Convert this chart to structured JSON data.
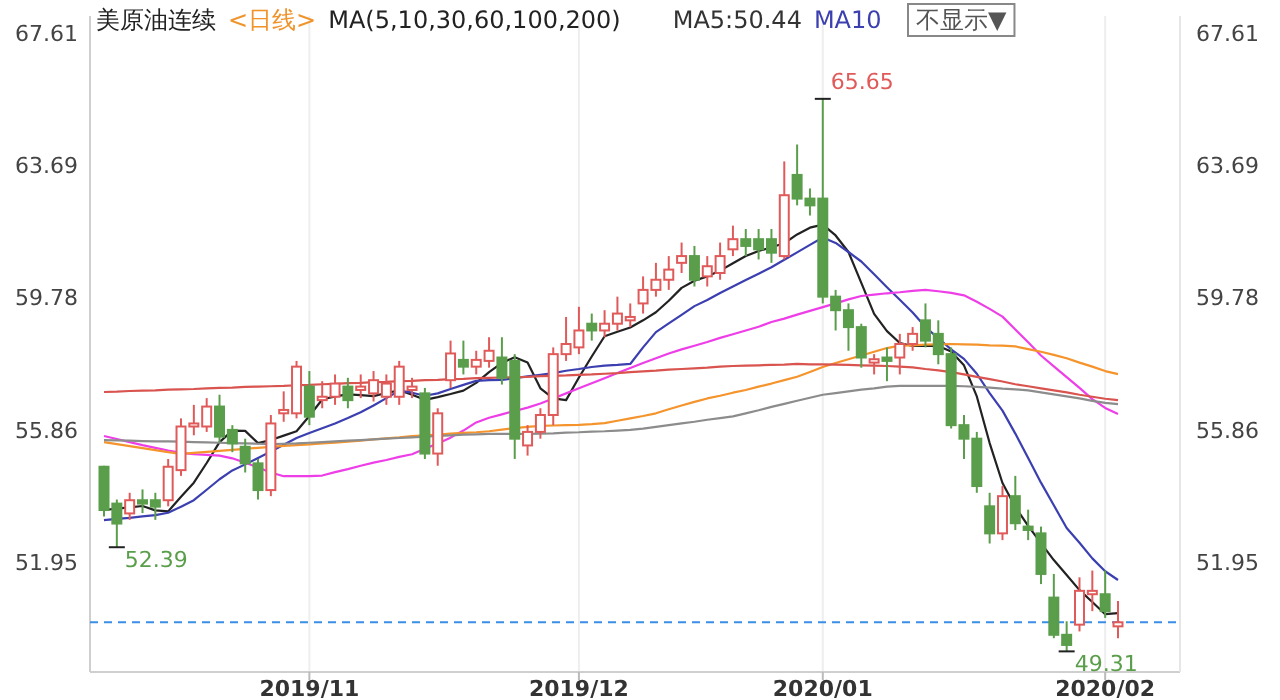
{
  "chart_data": {
    "type": "candlestick",
    "title": "美原油连续",
    "subtitle": "<日线>",
    "annotations": [
      "MA(5,10,30,60,100,200)",
      "MA5:50.44",
      "MA10",
      "不显示▼",
      "65.65",
      "52.39",
      "49.31"
    ],
    "categories": [
      null,
      null,
      null,
      null,
      null,
      null,
      null,
      null,
      null,
      null,
      null,
      null,
      null,
      null,
      null,
      null,
      "2019/11",
      null,
      null,
      null,
      null,
      null,
      null,
      null,
      null,
      null,
      null,
      null,
      null,
      null,
      null,
      null,
      null,
      null,
      null,
      null,
      null,
      "2019/12",
      null,
      null,
      null,
      null,
      null,
      null,
      null,
      null,
      null,
      null,
      null,
      null,
      null,
      null,
      null,
      null,
      null,
      null,
      "2020/01",
      null,
      null,
      null,
      null,
      null,
      null,
      null,
      null,
      null,
      null,
      null,
      null,
      null,
      null,
      null,
      null,
      null,
      null,
      null,
      null,
      null,
      "2020/02",
      null
    ],
    "ohlc": [
      [
        54.77,
        54.8,
        53.3,
        53.49
      ],
      [
        53.68,
        53.8,
        52.39,
        53.09
      ],
      [
        53.39,
        54.0,
        53.2,
        53.78
      ],
      [
        53.78,
        54.1,
        53.4,
        53.68
      ],
      [
        53.78,
        54.0,
        53.2,
        53.59
      ],
      [
        53.78,
        55.0,
        53.6,
        54.77
      ],
      [
        54.67,
        56.2,
        54.5,
        55.96
      ],
      [
        55.96,
        56.6,
        55.7,
        56.05
      ],
      [
        55.96,
        56.8,
        55.8,
        56.55
      ],
      [
        56.55,
        56.9,
        55.5,
        55.66
      ],
      [
        55.86,
        56.0,
        55.2,
        55.46
      ],
      [
        55.36,
        55.6,
        54.6,
        54.87
      ],
      [
        54.87,
        55.0,
        53.8,
        54.08
      ],
      [
        54.08,
        56.3,
        53.9,
        56.05
      ],
      [
        56.35,
        57.0,
        56.1,
        56.45
      ],
      [
        56.35,
        57.9,
        56.2,
        57.73
      ],
      [
        57.14,
        57.6,
        56.0,
        56.25
      ],
      [
        56.74,
        57.3,
        56.5,
        56.84
      ],
      [
        56.84,
        57.5,
        56.6,
        57.23
      ],
      [
        57.14,
        57.4,
        56.5,
        56.74
      ],
      [
        57.04,
        57.5,
        56.8,
        57.14
      ],
      [
        56.94,
        57.6,
        56.7,
        57.33
      ],
      [
        56.84,
        57.5,
        56.6,
        57.23
      ],
      [
        56.84,
        57.9,
        56.6,
        57.73
      ],
      [
        57.04,
        57.4,
        56.8,
        57.14
      ],
      [
        56.94,
        57.1,
        55.0,
        55.16
      ],
      [
        55.16,
        56.5,
        54.8,
        56.35
      ],
      [
        57.33,
        58.5,
        57.1,
        58.12
      ],
      [
        57.93,
        58.5,
        57.5,
        57.73
      ],
      [
        57.73,
        58.2,
        57.5,
        57.93
      ],
      [
        57.9,
        58.6,
        57.7,
        58.2
      ],
      [
        58.0,
        58.6,
        57.2,
        57.4
      ],
      [
        57.9,
        58.1,
        55.0,
        55.6
      ],
      [
        55.4,
        56.0,
        55.1,
        55.8
      ],
      [
        55.8,
        56.5,
        55.6,
        56.3
      ],
      [
        56.3,
        58.3,
        56.0,
        58.1
      ],
      [
        58.1,
        59.2,
        57.9,
        58.4
      ],
      [
        58.3,
        59.5,
        58.1,
        58.8
      ],
      [
        59.0,
        59.3,
        58.5,
        58.8
      ],
      [
        58.8,
        59.4,
        58.6,
        59.0
      ],
      [
        59.0,
        59.8,
        58.8,
        59.3
      ],
      [
        59.1,
        59.6,
        58.9,
        59.2
      ],
      [
        59.6,
        60.4,
        59.3,
        60.0
      ],
      [
        60.0,
        60.8,
        59.8,
        60.3
      ],
      [
        60.3,
        61.0,
        60.0,
        60.6
      ],
      [
        60.8,
        61.4,
        60.5,
        61.0
      ],
      [
        61.0,
        61.3,
        60.1,
        60.3
      ],
      [
        60.4,
        61.0,
        60.1,
        60.7
      ],
      [
        60.5,
        61.4,
        60.3,
        61.0
      ],
      [
        61.2,
        61.9,
        61.0,
        61.5
      ],
      [
        61.5,
        61.8,
        61.0,
        61.3
      ],
      [
        61.5,
        61.8,
        60.9,
        61.2
      ],
      [
        61.5,
        61.8,
        60.8,
        61.1
      ],
      [
        61.0,
        63.8,
        60.9,
        62.8
      ],
      [
        63.4,
        64.3,
        62.5,
        62.7
      ],
      [
        62.7,
        63.0,
        62.2,
        62.5
      ],
      [
        62.7,
        65.65,
        59.6,
        59.8
      ],
      [
        59.8,
        60.0,
        58.8,
        59.4
      ],
      [
        59.4,
        59.6,
        58.2,
        58.9
      ],
      [
        58.9,
        59.0,
        57.7,
        58.0
      ],
      [
        57.85,
        58.1,
        57.5,
        57.95
      ],
      [
        58.0,
        58.3,
        57.3,
        57.9
      ],
      [
        58.0,
        58.7,
        57.5,
        58.4
      ],
      [
        58.4,
        58.9,
        58.2,
        58.7
      ],
      [
        59.1,
        59.6,
        58.3,
        58.5
      ],
      [
        58.7,
        59.1,
        57.8,
        58.1
      ],
      [
        58.1,
        58.3,
        55.9,
        56.0
      ],
      [
        56.0,
        56.3,
        55.0,
        55.6
      ],
      [
        55.6,
        55.8,
        54.0,
        54.2
      ],
      [
        53.6,
        54.0,
        52.5,
        52.8
      ],
      [
        52.8,
        54.2,
        52.6,
        53.9
      ],
      [
        53.9,
        54.5,
        52.9,
        53.1
      ],
      [
        53.0,
        53.5,
        52.6,
        52.9
      ],
      [
        52.8,
        53.0,
        51.3,
        51.6
      ],
      [
        50.9,
        51.6,
        49.7,
        49.8
      ],
      [
        49.8,
        50.2,
        49.31,
        49.5
      ],
      [
        50.1,
        51.5,
        49.9,
        51.1
      ],
      [
        51.0,
        51.7,
        50.5,
        51.1
      ],
      [
        51.0,
        51.7,
        50.3,
        50.5
      ],
      [
        50.05,
        50.8,
        49.7,
        50.17
      ]
    ],
    "colors": [
      "#5a9e4b",
      "#5a9e4b",
      "#e05a5a",
      "#5a9e4b",
      "#5a9e4b",
      "#e05a5a",
      "#e05a5a",
      "#e05a5a",
      "#e05a5a",
      "#5a9e4b",
      "#5a9e4b",
      "#5a9e4b",
      "#5a9e4b",
      "#e05a5a",
      "#e05a5a",
      "#e05a5a",
      "#5a9e4b",
      "#e05a5a",
      "#e05a5a",
      "#5a9e4b",
      "#e05a5a",
      "#e05a5a",
      "#e05a5a",
      "#e05a5a",
      "#e05a5a",
      "#5a9e4b",
      "#e05a5a",
      "#e05a5a",
      "#5a9e4b",
      "#e05a5a",
      "#e05a5a",
      "#5a9e4b",
      "#5a9e4b",
      "#e05a5a",
      "#e05a5a",
      "#e05a5a",
      "#e05a5a",
      "#e05a5a",
      "#5a9e4b",
      "#e05a5a",
      "#e05a5a",
      "#e05a5a",
      "#e05a5a",
      "#e05a5a",
      "#e05a5a",
      "#e05a5a",
      "#5a9e4b",
      "#e05a5a",
      "#e05a5a",
      "#e05a5a",
      "#5a9e4b",
      "#5a9e4b",
      "#5a9e4b",
      "#e05a5a",
      "#5a9e4b",
      "#5a9e4b",
      "#5a9e4b",
      "#5a9e4b",
      "#5a9e4b",
      "#5a9e4b",
      "#e05a5a",
      "#5a9e4b",
      "#e05a5a",
      "#e05a5a",
      "#5a9e4b",
      "#5a9e4b",
      "#5a9e4b",
      "#5a9e4b",
      "#5a9e4b",
      "#5a9e4b",
      "#e05a5a",
      "#5a9e4b",
      "#5a9e4b",
      "#5a9e4b",
      "#5a9e4b",
      "#5a9e4b",
      "#e05a5a",
      "#e05a5a",
      "#5a9e4b",
      "#e05a5a"
    ],
    "series": [
      {
        "type": "line",
        "color": "#222222",
        "values": [
          53.49,
          53.53,
          53.57,
          53.61,
          53.48,
          53.45,
          53.88,
          54.3,
          54.88,
          55.5,
          55.84,
          55.83,
          55.47,
          55.56,
          55.69,
          55.82,
          56.27,
          56.76,
          56.85,
          56.91,
          56.89,
          56.86,
          56.95,
          57.03,
          56.9,
          56.75,
          56.83,
          56.92,
          57.02,
          57.25,
          57.57,
          57.84,
          58.01,
          57.85,
          57.09,
          56.79,
          56.74,
          57.41,
          58.03,
          58.63,
          58.76,
          58.89,
          59.1,
          59.34,
          59.68,
          60.06,
          60.27,
          60.4,
          60.57,
          60.79,
          61.0,
          61.15,
          61.26,
          61.38,
          61.64,
          61.84,
          61.93,
          61.61,
          61.12,
          60.21,
          59.29,
          58.78,
          58.43,
          58.34,
          58.34,
          58.34,
          58.18,
          57.77,
          56.85,
          55.47,
          54.29,
          53.58,
          53.02,
          52.51,
          52.01,
          51.57,
          51.12,
          50.77,
          50.41,
          50.44
        ]
      },
      {
        "type": "line",
        "color": "#3b3fb0",
        "values": [
          53.19,
          53.23,
          53.26,
          53.3,
          53.34,
          53.41,
          53.59,
          53.78,
          54.09,
          54.4,
          54.66,
          54.84,
          55.03,
          55.22,
          55.42,
          55.62,
          55.77,
          55.91,
          56.05,
          56.21,
          56.38,
          56.58,
          56.8,
          57.02,
          56.96,
          56.87,
          56.94,
          57.07,
          57.19,
          57.31,
          57.33,
          57.34,
          57.39,
          57.44,
          57.49,
          57.54,
          57.61,
          57.66,
          57.72,
          57.76,
          57.78,
          57.81,
          58.3,
          58.75,
          59.01,
          59.26,
          59.52,
          59.7,
          59.91,
          60.1,
          60.29,
          60.48,
          60.67,
          60.89,
          61.11,
          61.33,
          61.55,
          61.39,
          61.12,
          60.84,
          60.46,
          60.08,
          59.71,
          59.33,
          58.9,
          58.57,
          58.24,
          57.96,
          57.52,
          56.95,
          56.43,
          55.75,
          55.03,
          54.3,
          53.63,
          52.96,
          52.52,
          52.06,
          51.68,
          51.42
        ]
      },
      {
        "type": "line",
        "color": "#ee3ee8",
        "values": [
          55.68,
          55.59,
          55.5,
          55.41,
          55.33,
          55.25,
          55.18,
          55.14,
          55.12,
          55.1,
          55.02,
          54.89,
          54.75,
          54.6,
          54.49,
          54.49,
          54.49,
          54.51,
          54.61,
          54.7,
          54.8,
          54.89,
          54.97,
          55.06,
          55.14,
          55.3,
          55.46,
          55.63,
          55.84,
          56.08,
          56.22,
          56.32,
          56.42,
          56.52,
          56.64,
          56.79,
          56.94,
          57.09,
          57.24,
          57.39,
          57.54,
          57.69,
          57.84,
          57.98,
          58.12,
          58.24,
          58.35,
          58.46,
          58.58,
          58.69,
          58.8,
          58.91,
          59.05,
          59.15,
          59.27,
          59.38,
          59.49,
          59.6,
          59.72,
          59.82,
          59.86,
          59.9,
          59.93,
          59.97,
          60.0,
          59.96,
          59.91,
          59.84,
          59.65,
          59.44,
          59.21,
          58.83,
          58.45,
          58.06,
          57.74,
          57.42,
          57.1,
          56.77,
          56.51,
          56.33
        ]
      },
      {
        "type": "line",
        "color": "#f5942c",
        "values": [
          55.5,
          55.44,
          55.38,
          55.32,
          55.26,
          55.2,
          55.15,
          55.18,
          55.21,
          55.24,
          55.27,
          55.3,
          55.33,
          55.36,
          55.39,
          55.41,
          55.43,
          55.46,
          55.48,
          55.51,
          55.54,
          55.58,
          55.61,
          55.64,
          55.68,
          55.7,
          55.72,
          55.75,
          55.77,
          55.79,
          55.82,
          55.87,
          55.91,
          55.95,
          55.98,
          55.99,
          56.0,
          56.01,
          56.03,
          56.06,
          56.13,
          56.2,
          56.27,
          56.35,
          56.47,
          56.58,
          56.69,
          56.79,
          56.87,
          56.96,
          57.04,
          57.14,
          57.23,
          57.33,
          57.43,
          57.57,
          57.72,
          57.84,
          57.95,
          58.06,
          58.17,
          58.28,
          58.35,
          58.36,
          58.38,
          58.39,
          58.4,
          58.39,
          58.38,
          58.36,
          58.35,
          58.33,
          58.25,
          58.17,
          58.08,
          57.98,
          57.85,
          57.73,
          57.6,
          57.51
        ]
      },
      {
        "type": "line",
        "color": "#8c8c8c",
        "values": [
          55.56,
          55.55,
          55.54,
          55.53,
          55.52,
          55.52,
          55.51,
          55.5,
          55.49,
          55.48,
          55.47,
          55.46,
          55.45,
          55.44,
          55.45,
          55.46,
          55.48,
          55.5,
          55.52,
          55.54,
          55.56,
          55.58,
          55.6,
          55.62,
          55.64,
          55.66,
          55.68,
          55.7,
          55.72,
          55.73,
          55.74,
          55.74,
          55.74,
          55.74,
          55.75,
          55.76,
          55.78,
          55.79,
          55.81,
          55.82,
          55.84,
          55.86,
          55.9,
          55.95,
          56.0,
          56.05,
          56.1,
          56.16,
          56.21,
          56.26,
          56.35,
          56.44,
          56.54,
          56.63,
          56.72,
          56.81,
          56.9,
          56.95,
          57.0,
          57.05,
          57.09,
          57.14,
          57.16,
          57.16,
          57.16,
          57.16,
          57.16,
          57.15,
          57.13,
          57.11,
          57.08,
          57.06,
          57.03,
          56.97,
          56.91,
          56.85,
          56.79,
          56.72,
          56.66,
          56.62
        ]
      },
      {
        "type": "line",
        "color": "#d9534f",
        "values": [
          56.98,
          56.99,
          57.01,
          57.02,
          57.03,
          57.05,
          57.06,
          57.07,
          57.09,
          57.1,
          57.11,
          57.13,
          57.14,
          57.15,
          57.16,
          57.18,
          57.19,
          57.21,
          57.22,
          57.24,
          57.25,
          57.27,
          57.28,
          57.3,
          57.31,
          57.33,
          57.34,
          57.36,
          57.37,
          57.39,
          57.4,
          57.41,
          57.42,
          57.43,
          57.45,
          57.46,
          57.47,
          57.49,
          57.5,
          57.52,
          57.54,
          57.57,
          57.59,
          57.61,
          57.64,
          57.66,
          57.68,
          57.7,
          57.73,
          57.75,
          57.76,
          57.77,
          57.78,
          57.79,
          57.81,
          57.8,
          57.8,
          57.79,
          57.78,
          57.77,
          57.76,
          57.75,
          57.73,
          57.71,
          57.66,
          57.62,
          57.57,
          57.5,
          57.43,
          57.36,
          57.29,
          57.21,
          57.15,
          57.09,
          57.03,
          56.97,
          56.9,
          56.84,
          56.78,
          56.74
        ]
      }
    ],
    "ylim": [
      48.7,
      68.1
    ],
    "yticks": [
      51.95,
      55.86,
      59.78,
      63.69,
      67.61
    ],
    "y2lim": [
      48.7,
      68.1
    ],
    "y2ticks": [
      51.95,
      55.86,
      59.78,
      63.69,
      67.61
    ],
    "ref_lines": [
      {
        "axis": "y",
        "value": 50.17,
        "color": "#3a8ee6",
        "line_style": "dashed"
      }
    ],
    "grid": "x"
  }
}
